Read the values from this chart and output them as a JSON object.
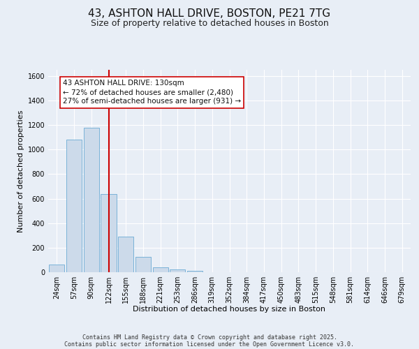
{
  "title": "43, ASHTON HALL DRIVE, BOSTON, PE21 7TG",
  "subtitle": "Size of property relative to detached houses in Boston",
  "xlabel": "Distribution of detached houses by size in Boston",
  "ylabel": "Number of detached properties",
  "bar_color": "#ccdaea",
  "bar_edge_color": "#6aaad4",
  "background_color": "#e8eef6",
  "plot_bg_color": "#e8eef6",
  "grid_color": "#ffffff",
  "vline_color": "#cc0000",
  "vline_x": 3,
  "categories": [
    "24sqm",
    "57sqm",
    "90sqm",
    "122sqm",
    "155sqm",
    "188sqm",
    "221sqm",
    "253sqm",
    "286sqm",
    "319sqm",
    "352sqm",
    "384sqm",
    "417sqm",
    "450sqm",
    "483sqm",
    "515sqm",
    "548sqm",
    "581sqm",
    "614sqm",
    "646sqm",
    "679sqm"
  ],
  "values": [
    65,
    1080,
    1180,
    640,
    290,
    125,
    42,
    20,
    13,
    0,
    0,
    0,
    0,
    0,
    0,
    0,
    0,
    0,
    0,
    0,
    0
  ],
  "ylim": [
    0,
    1650
  ],
  "yticks": [
    0,
    200,
    400,
    600,
    800,
    1000,
    1200,
    1400,
    1600
  ],
  "annotation_title": "43 ASHTON HALL DRIVE: 130sqm",
  "annotation_line1": "← 72% of detached houses are smaller (2,480)",
  "annotation_line2": "27% of semi-detached houses are larger (931) →",
  "footer1": "Contains HM Land Registry data © Crown copyright and database right 2025.",
  "footer2": "Contains public sector information licensed under the Open Government Licence v3.0.",
  "title_fontsize": 11,
  "subtitle_fontsize": 9,
  "axis_label_fontsize": 8,
  "tick_fontsize": 7,
  "annotation_fontsize": 7.5,
  "footer_fontsize": 6
}
